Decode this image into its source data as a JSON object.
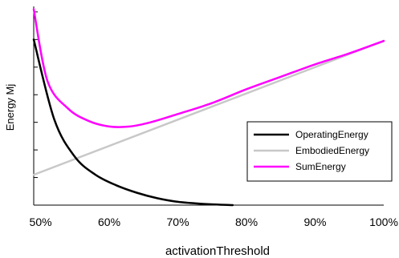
{
  "chart_data": {
    "type": "line",
    "title": "",
    "xlabel": "activationThreshold",
    "ylabel": "Energy Mj",
    "xlim": [
      0.49,
      1.0
    ],
    "ylim": [
      0,
      7.2
    ],
    "x_ticks": [
      {
        "value": 0.5,
        "label": "50%"
      },
      {
        "value": 0.6,
        "label": "60%"
      },
      {
        "value": 0.7,
        "label": "70%"
      },
      {
        "value": 0.8,
        "label": "80%"
      },
      {
        "value": 0.9,
        "label": "90%"
      },
      {
        "value": 1.0,
        "label": "100%"
      }
    ],
    "y_ticks": [
      1,
      2,
      3,
      4,
      5,
      6,
      7
    ],
    "y_tick_labels_shown": false,
    "grid": false,
    "legend": "center-right",
    "series": [
      {
        "name": "OperatingEnergy",
        "color": "#000000",
        "x": [
          0.49,
          0.52,
          0.55,
          0.58,
          0.61,
          0.64,
          0.67,
          0.7,
          0.74,
          0.78
        ],
        "y": [
          6.0,
          3.1,
          1.75,
          1.1,
          0.72,
          0.45,
          0.25,
          0.12,
          0.04,
          0.0
        ]
      },
      {
        "name": "EmbodiedEnergy",
        "color": "#c8c8c8",
        "x": [
          0.49,
          1.0
        ],
        "y": [
          1.1,
          5.95
        ]
      },
      {
        "name": "SumEnergy",
        "color": "#ff00ff",
        "x": [
          0.49,
          0.51,
          0.54,
          0.57,
          0.6,
          0.63,
          0.66,
          0.7,
          0.75,
          0.8,
          0.85,
          0.9,
          0.95,
          1.0
        ],
        "y": [
          7.1,
          4.5,
          3.5,
          3.05,
          2.85,
          2.85,
          3.0,
          3.3,
          3.7,
          4.2,
          4.65,
          5.1,
          5.5,
          5.95
        ]
      }
    ]
  }
}
